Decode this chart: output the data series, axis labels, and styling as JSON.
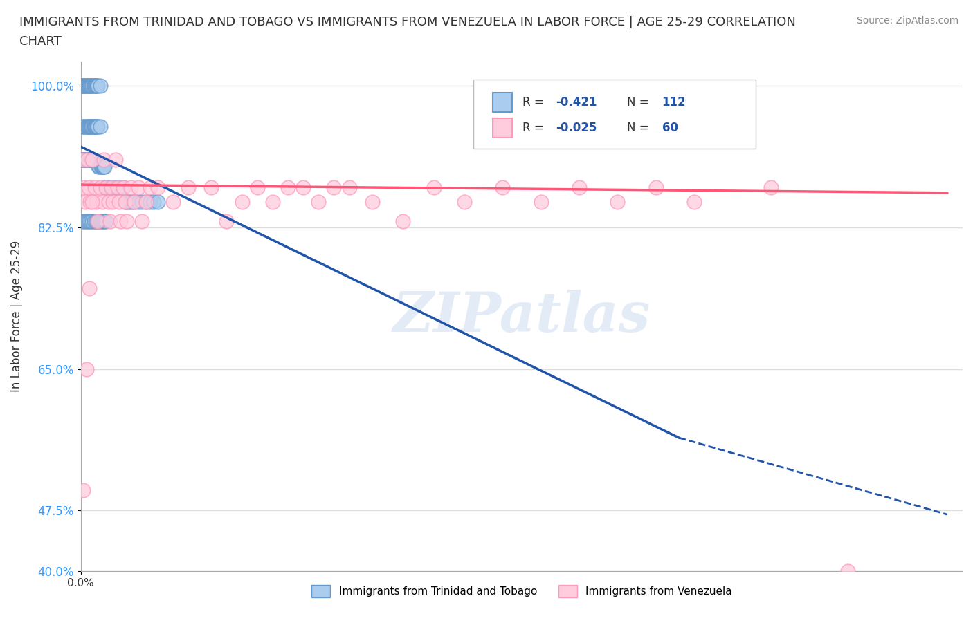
{
  "title_line1": "IMMIGRANTS FROM TRINIDAD AND TOBAGO VS IMMIGRANTS FROM VENEZUELA IN LABOR FORCE | AGE 25-29 CORRELATION",
  "title_line2": "CHART",
  "source": "Source: ZipAtlas.com",
  "xlabel": "",
  "ylabel": "In Labor Force | Age 25-29",
  "xlim": [
    0.0,
    1.15
  ],
  "ylim": [
    0.4,
    1.03
  ],
  "tt_color": "#6699CC",
  "tt_color_fill": "#AACCEE",
  "ven_color": "#FF99BB",
  "ven_color_fill": "#FFCCDD",
  "tt_line_color": "#2255AA",
  "ven_line_color": "#FF5577",
  "tt_R": "-0.421",
  "tt_N": "112",
  "ven_R": "-0.025",
  "ven_N": "60",
  "watermark": "ZIPatlas",
  "background_color": "#FFFFFF",
  "grid_color": "#DDDDDD",
  "legend_label_tt": "Immigrants from Trinidad and Tobago",
  "legend_label_ven": "Immigrants from Venezuela",
  "ytick_vals": [
    0.4,
    0.475,
    0.65,
    0.825,
    1.0
  ],
  "ytick_labels": [
    "40.0%",
    "47.5%",
    "65.0%",
    "82.5%",
    "100.0%"
  ],
  "tt_scatter_x": [
    0.001,
    0.002,
    0.002,
    0.003,
    0.003,
    0.004,
    0.005,
    0.005,
    0.006,
    0.007,
    0.007,
    0.008,
    0.008,
    0.009,
    0.009,
    0.01,
    0.01,
    0.011,
    0.011,
    0.012,
    0.012,
    0.013,
    0.013,
    0.014,
    0.014,
    0.015,
    0.015,
    0.016,
    0.016,
    0.017,
    0.017,
    0.018,
    0.018,
    0.019,
    0.019,
    0.02,
    0.02,
    0.021,
    0.021,
    0.022,
    0.022,
    0.023,
    0.024,
    0.025,
    0.025,
    0.026,
    0.027,
    0.028,
    0.029,
    0.03,
    0.031,
    0.032,
    0.033,
    0.034,
    0.035,
    0.036,
    0.038,
    0.04,
    0.042,
    0.044,
    0.046,
    0.048,
    0.05,
    0.052,
    0.055,
    0.058,
    0.06,
    0.063,
    0.066,
    0.07,
    0.075,
    0.08,
    0.085,
    0.09,
    0.095,
    0.1,
    0.003,
    0.005,
    0.007,
    0.009,
    0.011,
    0.013,
    0.015,
    0.017,
    0.019,
    0.021,
    0.023,
    0.025,
    0.027,
    0.029,
    0.031,
    0.033,
    0.001,
    0.002,
    0.003,
    0.004,
    0.005,
    0.006,
    0.007,
    0.008,
    0.009,
    0.01,
    0.011,
    0.012,
    0.013,
    0.014,
    0.015,
    0.016
  ],
  "tt_scatter_y": [
    1.0,
    1.0,
    0.95,
    1.0,
    0.95,
    1.0,
    1.0,
    0.95,
    1.0,
    1.0,
    0.95,
    1.0,
    0.95,
    1.0,
    0.95,
    1.0,
    0.95,
    1.0,
    0.95,
    1.0,
    0.95,
    1.0,
    0.95,
    1.0,
    0.95,
    1.0,
    0.95,
    1.0,
    0.95,
    1.0,
    0.95,
    1.0,
    0.95,
    1.0,
    0.95,
    1.0,
    0.95,
    1.0,
    0.95,
    1.0,
    0.95,
    0.9,
    0.9,
    1.0,
    0.95,
    0.9,
    0.9,
    0.9,
    0.9,
    0.9,
    0.9,
    0.875,
    0.875,
    0.875,
    0.875,
    0.875,
    0.875,
    0.875,
    0.875,
    0.875,
    0.875,
    0.875,
    0.875,
    0.875,
    0.875,
    0.857,
    0.857,
    0.857,
    0.857,
    0.857,
    0.857,
    0.857,
    0.857,
    0.857,
    0.857,
    0.857,
    0.833,
    0.833,
    0.833,
    0.833,
    0.833,
    0.833,
    0.833,
    0.833,
    0.833,
    0.833,
    0.833,
    0.833,
    0.833,
    0.833,
    0.833,
    0.833,
    0.909,
    0.909,
    0.909,
    0.909,
    0.909,
    0.909,
    0.909,
    0.909,
    0.909,
    0.909,
    0.909,
    0.909,
    0.909,
    0.909,
    0.909,
    0.909
  ],
  "ven_scatter_x": [
    0.002,
    0.004,
    0.006,
    0.008,
    0.01,
    0.012,
    0.015,
    0.018,
    0.02,
    0.022,
    0.025,
    0.028,
    0.03,
    0.033,
    0.036,
    0.038,
    0.04,
    0.042,
    0.045,
    0.048,
    0.05,
    0.052,
    0.055,
    0.058,
    0.06,
    0.065,
    0.07,
    0.075,
    0.08,
    0.085,
    0.09,
    0.1,
    0.12,
    0.14,
    0.17,
    0.19,
    0.21,
    0.23,
    0.25,
    0.27,
    0.29,
    0.31,
    0.33,
    0.35,
    0.38,
    0.42,
    0.46,
    0.5,
    0.55,
    0.6,
    0.65,
    0.7,
    0.75,
    0.8,
    0.9,
    1.0,
    0.003,
    0.007,
    0.011,
    0.015
  ],
  "ven_scatter_y": [
    0.909,
    0.875,
    0.857,
    0.909,
    0.875,
    0.857,
    0.909,
    0.875,
    0.857,
    0.833,
    0.875,
    0.857,
    0.909,
    0.875,
    0.857,
    0.833,
    0.875,
    0.857,
    0.909,
    0.875,
    0.857,
    0.833,
    0.875,
    0.857,
    0.833,
    0.875,
    0.857,
    0.875,
    0.833,
    0.857,
    0.875,
    0.875,
    0.857,
    0.875,
    0.875,
    0.833,
    0.857,
    0.875,
    0.857,
    0.875,
    0.875,
    0.857,
    0.875,
    0.875,
    0.857,
    0.833,
    0.875,
    0.857,
    0.875,
    0.857,
    0.875,
    0.857,
    0.875,
    0.857,
    0.875,
    0.4,
    0.5,
    0.65,
    0.75,
    0.857
  ],
  "tt_trend_x0": 0.0,
  "tt_trend_x1": 0.78,
  "tt_trend_x2": 1.13,
  "tt_trend_y0": 0.925,
  "tt_trend_y1": 0.565,
  "tt_trend_y2": 0.47,
  "ven_trend_x0": 0.0,
  "ven_trend_x1": 1.13,
  "ven_trend_y0": 0.878,
  "ven_trend_y1": 0.868
}
